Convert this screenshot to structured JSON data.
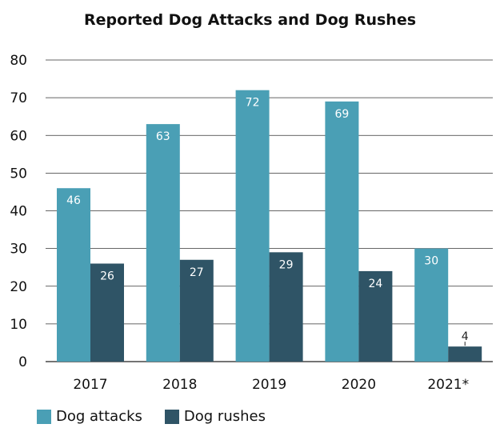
{
  "chart_data": {
    "type": "bar",
    "title": "Reported Dog Attacks and Dog Rushes",
    "categories": [
      "2017",
      "2018",
      "2019",
      "2020",
      "2021*"
    ],
    "series": [
      {
        "name": "Dog attacks",
        "color": "#4a9fb5",
        "values": [
          46,
          63,
          72,
          69,
          30
        ]
      },
      {
        "name": "Dog rushes",
        "color": "#2f5466",
        "values": [
          26,
          27,
          29,
          24,
          4
        ]
      }
    ],
    "ylim": [
      0,
      80
    ],
    "yticks": [
      0,
      10,
      20,
      30,
      40,
      50,
      60,
      70,
      80
    ],
    "grid": true,
    "legend": "bottom-left"
  }
}
